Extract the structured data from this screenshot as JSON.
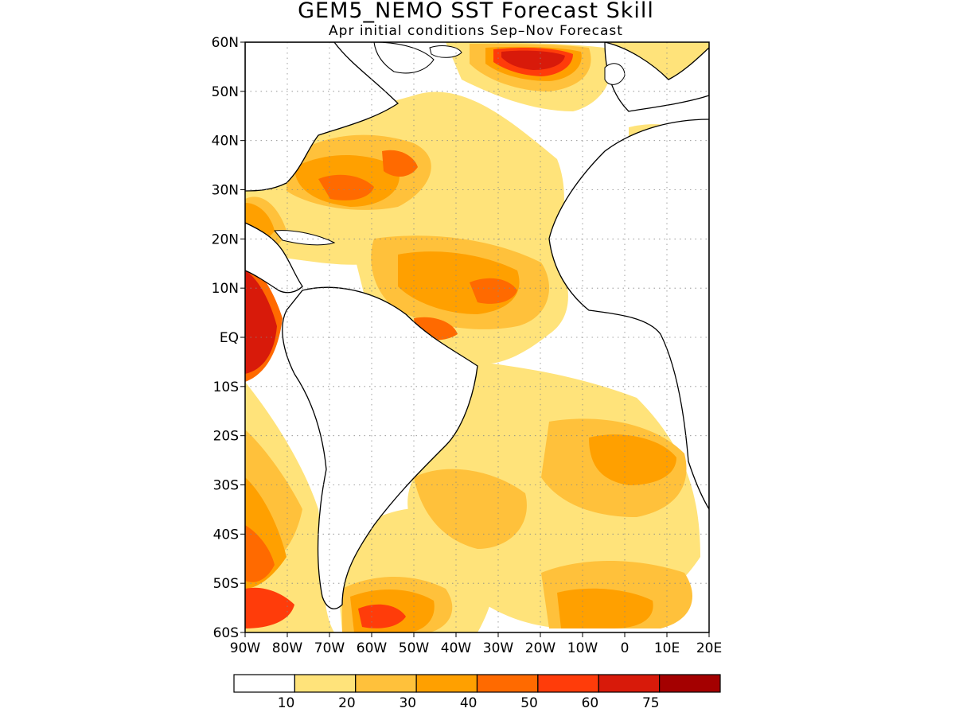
{
  "title": "GEM5_NEMO SST Forecast Skill",
  "subtitle": "Apr initial conditions  Sep–Nov Forecast",
  "map": {
    "lat_range": [
      -60,
      60
    ],
    "lon_range": [
      -90,
      20
    ],
    "gridlines": "dotted",
    "lat_ticks": [
      {
        "lat": 60,
        "label": "60N"
      },
      {
        "lat": 50,
        "label": "50N"
      },
      {
        "lat": 40,
        "label": "40N"
      },
      {
        "lat": 30,
        "label": "30N"
      },
      {
        "lat": 20,
        "label": "20N"
      },
      {
        "lat": 10,
        "label": "10N"
      },
      {
        "lat": 0,
        "label": "EQ"
      },
      {
        "lat": -10,
        "label": "10S"
      },
      {
        "lat": -20,
        "label": "20S"
      },
      {
        "lat": -30,
        "label": "30S"
      },
      {
        "lat": -40,
        "label": "40S"
      },
      {
        "lat": -50,
        "label": "50S"
      },
      {
        "lat": -60,
        "label": "60S"
      }
    ],
    "lon_ticks": [
      {
        "lon": -90,
        "label": "90W"
      },
      {
        "lon": -80,
        "label": "80W"
      },
      {
        "lon": -70,
        "label": "70W"
      },
      {
        "lon": -60,
        "label": "60W"
      },
      {
        "lon": -50,
        "label": "50W"
      },
      {
        "lon": -40,
        "label": "40W"
      },
      {
        "lon": -30,
        "label": "30W"
      },
      {
        "lon": -20,
        "label": "20W"
      },
      {
        "lon": -10,
        "label": "10W"
      },
      {
        "lon": 0,
        "label": "0"
      },
      {
        "lon": 10,
        "label": "10E"
      },
      {
        "lon": 20,
        "label": "20E"
      }
    ]
  },
  "colorbar": {
    "colors": [
      "#ffffff",
      "#ffe37a",
      "#ffc13b",
      "#ffa000",
      "#ff6a00",
      "#ff3c0a",
      "#d81a0a",
      "#a40000"
    ],
    "labels": [
      "10",
      "20",
      "30",
      "40",
      "50",
      "60",
      "75"
    ]
  }
}
